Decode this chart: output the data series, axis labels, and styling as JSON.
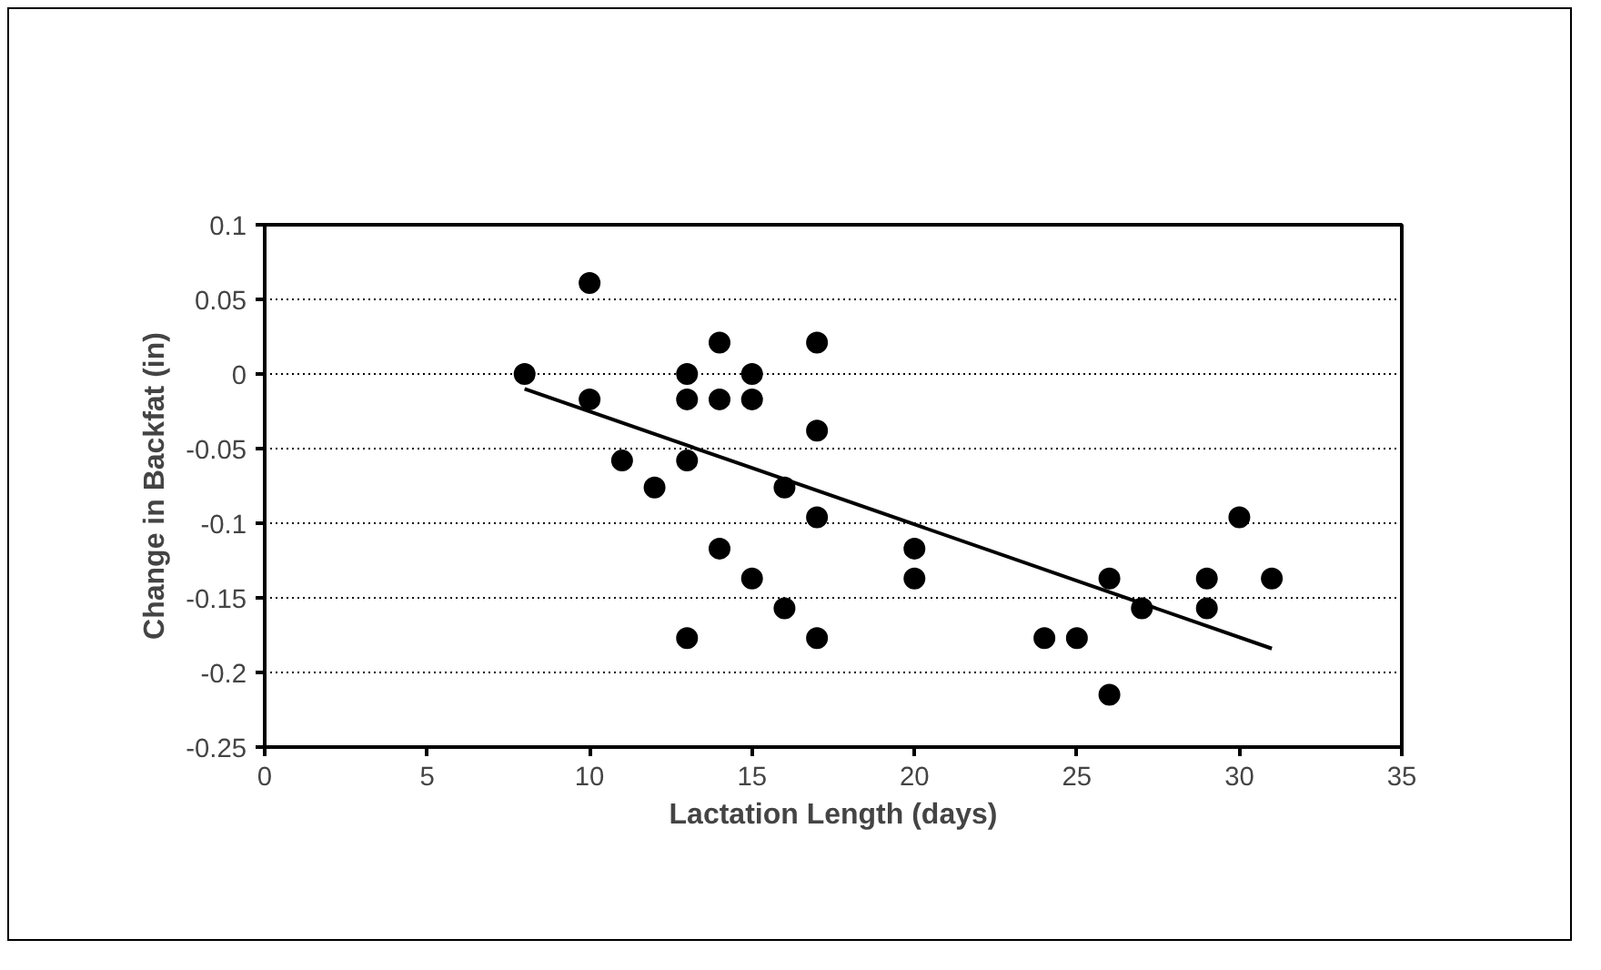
{
  "chart_data": {
    "type": "scatter",
    "xlabel": "Lactation Length (days)",
    "ylabel": "Change in Backfat (in)",
    "xlim": [
      0,
      35
    ],
    "xticks": [
      0,
      5,
      10,
      15,
      20,
      25,
      30,
      35
    ],
    "ylim": [
      -0.25,
      0.1
    ],
    "yticks": [
      -0.25,
      -0.2,
      -0.15,
      -0.1,
      -0.05,
      0,
      0.05,
      0.1
    ],
    "grid": "y",
    "series": [
      {
        "marker": "circle",
        "color": "#000000",
        "x": [
          8,
          10,
          10,
          11,
          12,
          13,
          13,
          13,
          13,
          14,
          14,
          14,
          15,
          15,
          15,
          16,
          16,
          17,
          17,
          17,
          17,
          20,
          20,
          24,
          25,
          26,
          26,
          27,
          29,
          29,
          30,
          31
        ],
        "values": [
          0,
          0.061,
          -0.017,
          -0.058,
          -0.076,
          0,
          -0.017,
          -0.058,
          -0.177,
          0.021,
          -0.017,
          -0.117,
          0,
          -0.017,
          -0.137,
          -0.076,
          -0.157,
          0.021,
          -0.038,
          -0.096,
          -0.177,
          -0.117,
          -0.137,
          -0.177,
          -0.177,
          -0.137,
          -0.215,
          -0.157,
          -0.137,
          -0.157,
          -0.096,
          -0.137
        ]
      },
      {
        "type": "line",
        "color": "#000000",
        "line_style": "solid",
        "x": [
          8,
          31
        ],
        "values": [
          -0.01,
          -0.184
        ]
      }
    ]
  }
}
